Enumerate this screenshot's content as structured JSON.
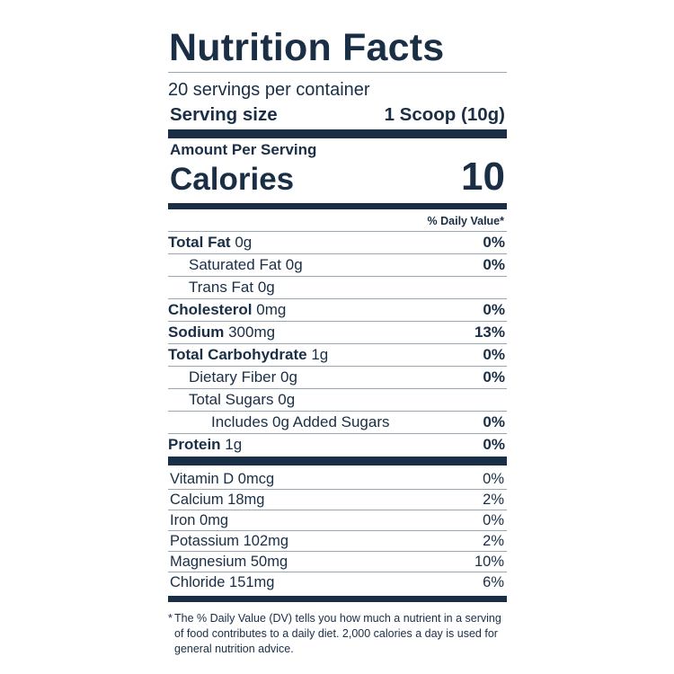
{
  "title": "Nutrition Facts",
  "servings_per_container": "20 servings per container",
  "serving_size": {
    "label": "Serving size",
    "value": "1 Scoop (10g)"
  },
  "amount_per_serving": "Amount Per Serving",
  "calories": {
    "label": "Calories",
    "value": "10"
  },
  "daily_value_header": "% Daily Value*",
  "nutrients": [
    {
      "name": "Total Fat",
      "amount": "0g",
      "dv": "0%"
    },
    {
      "name": "Saturated Fat",
      "amount": "0g",
      "dv": "0%"
    },
    {
      "name": "Trans Fat",
      "amount": "0g",
      "dv": ""
    },
    {
      "name": "Cholesterol",
      "amount": "0mg",
      "dv": "0%"
    },
    {
      "name": "Sodium",
      "amount": "300mg",
      "dv": "13%"
    },
    {
      "name": "Total Carbohydrate",
      "amount": "1g",
      "dv": "0%"
    },
    {
      "name": "Dietary Fiber",
      "amount": "0g",
      "dv": "0%"
    },
    {
      "name": "Total Sugars",
      "amount": "0g",
      "dv": ""
    },
    {
      "name": "Includes 0g Added Sugars",
      "amount": "",
      "dv": "0%"
    },
    {
      "name": "Protein",
      "amount": "1g",
      "dv": "0%"
    }
  ],
  "vitamins": [
    {
      "text": "Vitamin D 0mcg",
      "dv": "0%"
    },
    {
      "text": "Calcium 18mg",
      "dv": "2%"
    },
    {
      "text": "Iron 0mg",
      "dv": "0%"
    },
    {
      "text": "Potassium 102mg",
      "dv": "2%"
    },
    {
      "text": "Magnesium 50mg",
      "dv": "10%"
    },
    {
      "text": "Chloride 151mg",
      "dv": "6%"
    }
  ],
  "footnote": {
    "marker": "*",
    "text": "The % Daily Value (DV) tells you how much a nutrient in a serving of food contributes to a daily diet. 2,000 calories a day is used for general nutrition advice."
  },
  "colors": {
    "ink": "#1a2e45",
    "rule": "#9aa6b2"
  }
}
